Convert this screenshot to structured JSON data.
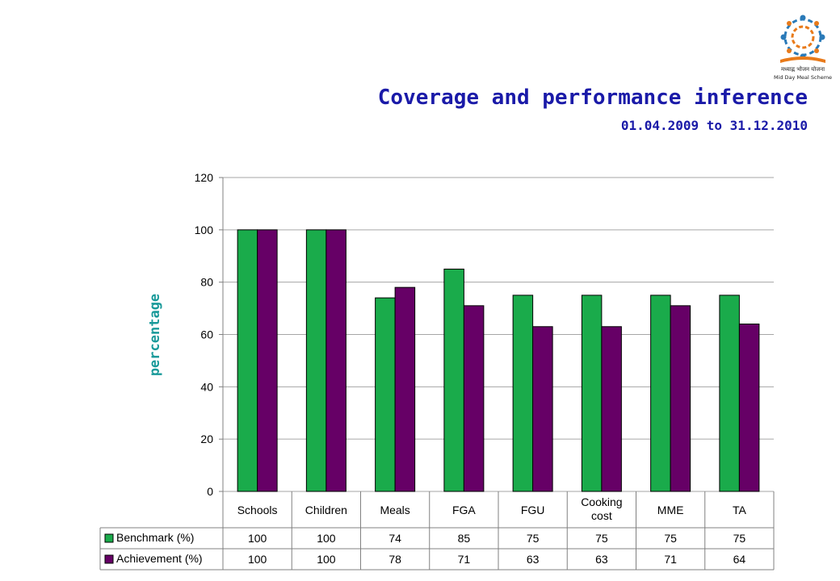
{
  "logo": {
    "text_line1": "मध्याह्न भोजन योजना",
    "text_line2": "Mid Day Meal Scheme",
    "icon": "mid-day-meal-logo"
  },
  "title": "Coverage and performance inference",
  "subtitle": "01.04.2009 to 31.12.2010",
  "colors": {
    "benchmark": "#1aab4b",
    "achievement": "#660066",
    "title": "#1a1aa8",
    "ylabel": "#1a9a9a"
  },
  "chart_data": {
    "type": "bar",
    "title": "Coverage and performance inference",
    "subtitle": "01.04.2009 to 31.12.2010",
    "xlabel": "",
    "ylabel": "percentage",
    "ylim": [
      0,
      120
    ],
    "yticks": [
      0,
      20,
      40,
      60,
      80,
      100,
      120
    ],
    "grid": true,
    "categories": [
      "Schools",
      "Children",
      "Meals",
      "FGA",
      "FGU",
      "Cooking cost",
      "MME",
      "TA"
    ],
    "series": [
      {
        "name": "Benchmark (%)",
        "values": [
          100,
          100,
          74,
          85,
          75,
          75,
          75,
          75
        ]
      },
      {
        "name": "Achievement (%)",
        "values": [
          100,
          100,
          78,
          71,
          63,
          63,
          71,
          64
        ]
      }
    ],
    "legend": "data-table"
  }
}
